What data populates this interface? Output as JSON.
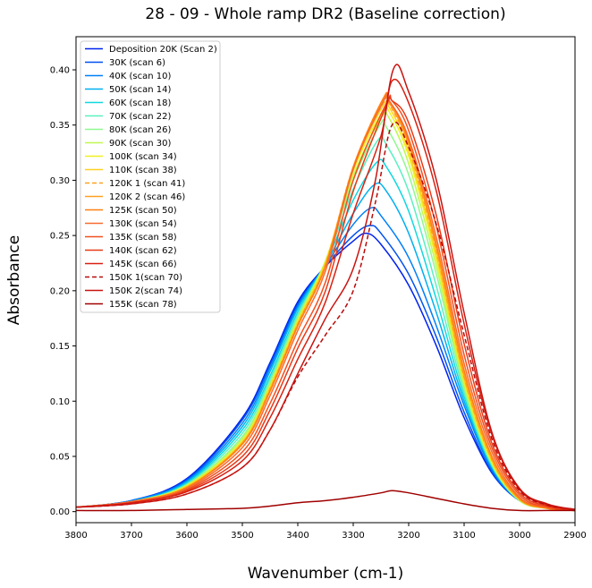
{
  "chart_data": {
    "type": "line",
    "title": "28 - 09 - Whole ramp DR2 (Baseline correction)",
    "xlabel": "Wavenumber (cm-1)",
    "ylabel": "Absorbance",
    "xlim": [
      3800,
      2900
    ],
    "ylim": [
      -0.01,
      0.43
    ],
    "x_reversed": true,
    "xticks": [
      3800,
      3700,
      3600,
      3500,
      3400,
      3300,
      3200,
      3100,
      3000,
      2900
    ],
    "yticks": [
      0.0,
      0.05,
      0.1,
      0.15,
      0.2,
      0.25,
      0.3,
      0.35,
      0.4
    ],
    "grid": false,
    "legend_position": "top-left",
    "series": [
      {
        "name": "Deposition 20K (Scan 2)",
        "color": "#0022ee",
        "dash": "solid",
        "peak_x": 3276,
        "peak_y": 0.252,
        "shoulder": 0.245,
        "s2": 0.0,
        "xpts": [
          3800,
          3700,
          3600,
          3500,
          3450,
          3400,
          3350,
          3300,
          3276,
          3250,
          3200,
          3150,
          3100,
          3050,
          3000,
          2950,
          2900
        ],
        "ypts": [
          0.004,
          0.01,
          0.03,
          0.085,
          0.135,
          0.19,
          0.222,
          0.245,
          0.252,
          0.242,
          0.205,
          0.15,
          0.085,
          0.035,
          0.01,
          0.003,
          0.001
        ]
      },
      {
        "name": "30K (scan 6)",
        "color": "#0050f0",
        "dash": "solid",
        "xpts": [
          3800,
          3700,
          3600,
          3500,
          3450,
          3400,
          3350,
          3300,
          3270,
          3250,
          3200,
          3150,
          3100,
          3050,
          3000,
          2950,
          2900
        ],
        "ypts": [
          0.004,
          0.01,
          0.029,
          0.083,
          0.133,
          0.188,
          0.222,
          0.25,
          0.259,
          0.252,
          0.215,
          0.158,
          0.09,
          0.036,
          0.01,
          0.003,
          0.001
        ]
      },
      {
        "name": "40K (scan 10)",
        "color": "#0080f8",
        "dash": "solid",
        "xpts": [
          3800,
          3700,
          3600,
          3500,
          3450,
          3400,
          3350,
          3300,
          3268,
          3250,
          3200,
          3150,
          3100,
          3050,
          3000,
          2950,
          2900
        ],
        "ypts": [
          0.004,
          0.01,
          0.028,
          0.08,
          0.13,
          0.186,
          0.223,
          0.26,
          0.275,
          0.268,
          0.23,
          0.168,
          0.096,
          0.038,
          0.01,
          0.003,
          0.001
        ]
      },
      {
        "name": "50K (scan 14)",
        "color": "#00b0f0",
        "dash": "solid",
        "xpts": [
          3800,
          3700,
          3600,
          3500,
          3450,
          3400,
          3350,
          3300,
          3262,
          3240,
          3200,
          3150,
          3100,
          3050,
          3000,
          2950,
          2900
        ],
        "ypts": [
          0.004,
          0.009,
          0.027,
          0.077,
          0.127,
          0.184,
          0.224,
          0.27,
          0.296,
          0.29,
          0.252,
          0.18,
          0.1,
          0.04,
          0.01,
          0.003,
          0.001
        ]
      },
      {
        "name": "60K (scan 18)",
        "color": "#10d8e0",
        "dash": "solid",
        "xpts": [
          3800,
          3700,
          3600,
          3500,
          3450,
          3400,
          3350,
          3300,
          3258,
          3240,
          3200,
          3150,
          3100,
          3050,
          3000,
          2950,
          2900
        ],
        "ypts": [
          0.004,
          0.009,
          0.026,
          0.074,
          0.123,
          0.181,
          0.225,
          0.282,
          0.316,
          0.312,
          0.272,
          0.192,
          0.104,
          0.041,
          0.01,
          0.003,
          0.001
        ]
      },
      {
        "name": "70K (scan 22)",
        "color": "#5af0c0",
        "dash": "solid",
        "xpts": [
          3800,
          3700,
          3600,
          3500,
          3450,
          3400,
          3350,
          3300,
          3256,
          3240,
          3200,
          3150,
          3100,
          3050,
          3000,
          2950,
          2900
        ],
        "ypts": [
          0.004,
          0.009,
          0.025,
          0.071,
          0.12,
          0.178,
          0.226,
          0.292,
          0.336,
          0.332,
          0.29,
          0.204,
          0.108,
          0.042,
          0.01,
          0.003,
          0.001
        ]
      },
      {
        "name": "80K (scan 26)",
        "color": "#90f890",
        "dash": "solid",
        "xpts": [
          3800,
          3700,
          3600,
          3500,
          3450,
          3400,
          3350,
          3300,
          3252,
          3240,
          3200,
          3150,
          3100,
          3050,
          3000,
          2950,
          2900
        ],
        "ypts": [
          0.004,
          0.009,
          0.024,
          0.068,
          0.117,
          0.176,
          0.227,
          0.3,
          0.35,
          0.348,
          0.305,
          0.215,
          0.112,
          0.043,
          0.01,
          0.003,
          0.001
        ]
      },
      {
        "name": "90K (scan 30)",
        "color": "#c0f850",
        "dash": "solid",
        "xpts": [
          3800,
          3700,
          3600,
          3500,
          3450,
          3400,
          3350,
          3300,
          3250,
          3235,
          3200,
          3150,
          3100,
          3050,
          3000,
          2950,
          2900
        ],
        "ypts": [
          0.004,
          0.009,
          0.024,
          0.066,
          0.115,
          0.174,
          0.227,
          0.304,
          0.356,
          0.356,
          0.315,
          0.222,
          0.115,
          0.044,
          0.01,
          0.003,
          0.001
        ]
      },
      {
        "name": "100K (scan 34)",
        "color": "#f0f020",
        "dash": "solid",
        "xpts": [
          3800,
          3700,
          3600,
          3500,
          3450,
          3400,
          3350,
          3300,
          3248,
          3235,
          3200,
          3150,
          3100,
          3050,
          3000,
          2950,
          2900
        ],
        "ypts": [
          0.004,
          0.009,
          0.023,
          0.064,
          0.113,
          0.172,
          0.226,
          0.308,
          0.362,
          0.362,
          0.322,
          0.228,
          0.118,
          0.045,
          0.011,
          0.003,
          0.001
        ]
      },
      {
        "name": "110K (scan 38)",
        "color": "#ffd020",
        "dash": "solid",
        "xpts": [
          3800,
          3700,
          3600,
          3500,
          3450,
          3400,
          3350,
          3300,
          3248,
          3235,
          3200,
          3150,
          3100,
          3050,
          3000,
          2950,
          2900
        ],
        "ypts": [
          0.004,
          0.009,
          0.023,
          0.063,
          0.112,
          0.171,
          0.225,
          0.31,
          0.366,
          0.366,
          0.326,
          0.232,
          0.12,
          0.046,
          0.011,
          0.003,
          0.001
        ]
      },
      {
        "name": "120K 1 (scan 41)",
        "color": "#ffa020",
        "dash": "dashed",
        "xpts": [
          3800,
          3700,
          3600,
          3500,
          3450,
          3400,
          3350,
          3300,
          3246,
          3235,
          3200,
          3150,
          3100,
          3050,
          3000,
          2950,
          2900
        ],
        "ypts": [
          0.004,
          0.009,
          0.022,
          0.062,
          0.111,
          0.17,
          0.224,
          0.312,
          0.37,
          0.369,
          0.33,
          0.236,
          0.122,
          0.047,
          0.011,
          0.003,
          0.001
        ]
      },
      {
        "name": "120K 2 (scan 46)",
        "color": "#ffa020",
        "dash": "solid",
        "xpts": [
          3800,
          3700,
          3600,
          3500,
          3450,
          3400,
          3350,
          3300,
          3246,
          3235,
          3200,
          3150,
          3100,
          3050,
          3000,
          2950,
          2900
        ],
        "ypts": [
          0.004,
          0.009,
          0.022,
          0.062,
          0.11,
          0.169,
          0.223,
          0.312,
          0.372,
          0.37,
          0.332,
          0.238,
          0.124,
          0.048,
          0.011,
          0.003,
          0.001
        ]
      },
      {
        "name": "125K (scan 50)",
        "color": "#ff8010",
        "dash": "solid",
        "xpts": [
          3800,
          3700,
          3600,
          3500,
          3450,
          3400,
          3350,
          3300,
          3246,
          3235,
          3200,
          3150,
          3100,
          3050,
          3000,
          2950,
          2900
        ],
        "ypts": [
          0.004,
          0.009,
          0.022,
          0.061,
          0.109,
          0.168,
          0.222,
          0.312,
          0.374,
          0.372,
          0.335,
          0.242,
          0.128,
          0.05,
          0.012,
          0.003,
          0.001
        ]
      },
      {
        "name": "130K (scan 54)",
        "color": "#f86a30",
        "dash": "solid",
        "xpts": [
          3800,
          3700,
          3600,
          3500,
          3450,
          3400,
          3350,
          3300,
          3244,
          3235,
          3200,
          3150,
          3100,
          3050,
          3000,
          2950,
          2900
        ],
        "ypts": [
          0.004,
          0.009,
          0.021,
          0.058,
          0.105,
          0.164,
          0.218,
          0.31,
          0.373,
          0.372,
          0.338,
          0.248,
          0.134,
          0.054,
          0.013,
          0.004,
          0.001
        ]
      },
      {
        "name": "135K (scan 58)",
        "color": "#f05020",
        "dash": "solid",
        "xpts": [
          3800,
          3700,
          3600,
          3500,
          3450,
          3400,
          3350,
          3300,
          3240,
          3230,
          3200,
          3150,
          3100,
          3050,
          3000,
          2950,
          2900
        ],
        "ypts": [
          0.004,
          0.008,
          0.02,
          0.054,
          0.098,
          0.155,
          0.208,
          0.3,
          0.37,
          0.372,
          0.345,
          0.258,
          0.142,
          0.058,
          0.015,
          0.004,
          0.001
        ]
      },
      {
        "name": "140K (scan 62)",
        "color": "#e83a18",
        "dash": "solid",
        "xpts": [
          3800,
          3700,
          3600,
          3500,
          3450,
          3400,
          3350,
          3300,
          3240,
          3230,
          3200,
          3150,
          3100,
          3050,
          3000,
          2950,
          2900
        ],
        "ypts": [
          0.004,
          0.008,
          0.019,
          0.05,
          0.092,
          0.148,
          0.2,
          0.29,
          0.368,
          0.372,
          0.352,
          0.268,
          0.152,
          0.062,
          0.017,
          0.005,
          0.001
        ]
      },
      {
        "name": "145K (scan 66)",
        "color": "#d82010",
        "dash": "solid",
        "xpts": [
          3800,
          3700,
          3600,
          3500,
          3450,
          3400,
          3350,
          3300,
          3250,
          3230,
          3200,
          3150,
          3100,
          3050,
          3000,
          2950,
          2900
        ],
        "ypts": [
          0.004,
          0.008,
          0.018,
          0.046,
          0.085,
          0.138,
          0.19,
          0.27,
          0.34,
          0.39,
          0.37,
          0.29,
          0.17,
          0.07,
          0.02,
          0.006,
          0.002
        ]
      },
      {
        "name": "150K 1(scan 70)",
        "color": "#b80a0a",
        "dash": "dashed",
        "xpts": [
          3800,
          3700,
          3600,
          3500,
          3450,
          3400,
          3350,
          3300,
          3260,
          3230,
          3200,
          3150,
          3100,
          3050,
          3000,
          2950,
          2900
        ],
        "ypts": [
          0.004,
          0.007,
          0.016,
          0.04,
          0.074,
          0.122,
          0.16,
          0.2,
          0.28,
          0.35,
          0.33,
          0.26,
          0.16,
          0.066,
          0.019,
          0.006,
          0.002
        ]
      },
      {
        "name": "150K 2(scan 74)",
        "color": "#c81410",
        "dash": "solid",
        "xpts": [
          3800,
          3700,
          3600,
          3500,
          3450,
          3400,
          3350,
          3300,
          3260,
          3228,
          3200,
          3150,
          3100,
          3050,
          3000,
          2950,
          2900
        ],
        "ypts": [
          0.004,
          0.007,
          0.016,
          0.04,
          0.074,
          0.125,
          0.175,
          0.22,
          0.3,
          0.4,
          0.38,
          0.3,
          0.18,
          0.072,
          0.021,
          0.007,
          0.002
        ]
      },
      {
        "name": "155K (scan 78)",
        "color": "#a00000",
        "dash": "solid",
        "xpts": [
          3800,
          3700,
          3600,
          3500,
          3450,
          3400,
          3350,
          3300,
          3250,
          3230,
          3200,
          3150,
          3100,
          3050,
          3000,
          2950,
          2900
        ],
        "ypts": [
          0.001,
          0.001,
          0.002,
          0.003,
          0.005,
          0.008,
          0.01,
          0.013,
          0.017,
          0.019,
          0.017,
          0.012,
          0.007,
          0.003,
          0.001,
          0.001,
          0.001
        ]
      }
    ]
  }
}
